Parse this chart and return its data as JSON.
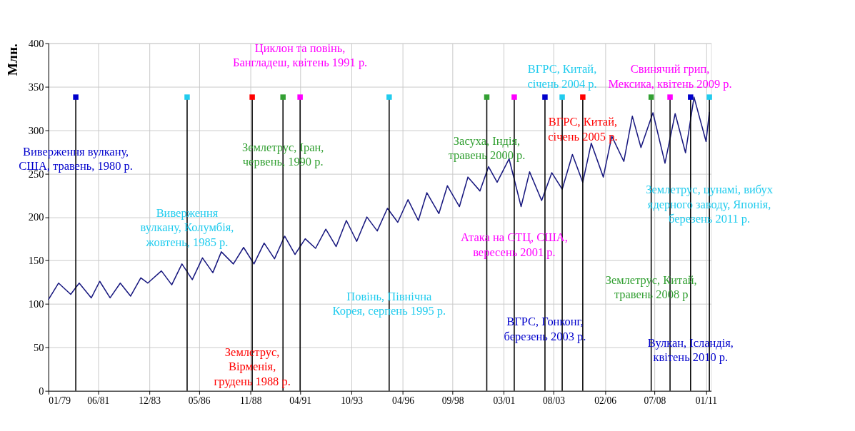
{
  "chart_data": {
    "type": "line",
    "ylabel": "Млн.",
    "x": [
      "1979-01",
      "1979-07",
      "1980-02",
      "1980-07",
      "1981-02",
      "1981-07",
      "1982-01",
      "1982-07",
      "1983-01",
      "1983-07",
      "1983-11",
      "1984-07",
      "1985-01",
      "1985-07",
      "1986-01",
      "1986-07",
      "1987-01",
      "1987-06",
      "1988-01",
      "1988-07",
      "1989-01",
      "1989-07",
      "1990-01",
      "1990-07",
      "1991-01",
      "1991-07",
      "1992-01",
      "1992-07",
      "1993-01",
      "1993-07",
      "1994-01",
      "1994-07",
      "1995-01",
      "1995-07",
      "1996-01",
      "1996-07",
      "1997-01",
      "1997-06",
      "1998-01",
      "1998-06",
      "1999-01",
      "1999-06",
      "2000-01",
      "2000-06",
      "2000-11",
      "2001-06",
      "2002-01",
      "2002-06",
      "2003-01",
      "2003-07",
      "2004-01",
      "2004-07",
      "2005-01",
      "2005-06",
      "2006-01",
      "2006-06",
      "2007-01",
      "2007-06",
      "2007-11",
      "2008-06",
      "2009-01",
      "2009-07",
      "2010-01",
      "2010-06",
      "2011-01",
      "2011-03"
    ],
    "series": [
      {
        "color": "#1a1a80",
        "values": [
          105,
          124,
          111,
          124,
          107,
          126,
          107,
          124,
          109,
          130,
          124,
          138,
          122,
          146,
          128,
          153,
          136,
          160,
          146,
          165,
          146,
          170,
          152,
          178,
          157,
          175,
          164,
          186,
          166,
          196,
          172,
          200,
          184,
          210,
          194,
          220,
          196,
          228,
          204,
          236,
          212,
          246,
          230,
          258,
          240,
          267,
          212,
          252,
          219,
          251,
          232,
          272,
          240,
          285,
          246,
          293,
          264,
          316,
          280,
          320,
          262,
          319,
          274,
          338,
          287,
          321
        ]
      },
      {
        "type": "scatter",
        "marker": "square",
        "x": [
          "1980-05",
          "1985-10",
          "1988-12",
          "1990-06",
          "1991-04",
          "1995-08",
          "2000-05",
          "2001-09",
          "2003-03",
          "2004-01",
          "2005-01",
          "2008-05",
          "2009-04",
          "2010-04",
          "2011-03"
        ],
        "values": [
          338,
          338,
          338,
          338,
          338,
          338,
          338,
          338,
          338,
          338,
          338,
          338,
          338,
          338,
          338
        ],
        "colors": [
          "#0000cc",
          "#22ccee",
          "#ff0000",
          "#33a033",
          "#ff00ff",
          "#22ccee",
          "#33a033",
          "#ff00ff",
          "#0000cc",
          "#22ccee",
          "#ff0000",
          "#33a033",
          "#ff00ff",
          "#0000cc",
          "#22ccee"
        ]
      }
    ],
    "xlim": [
      "1979-01",
      "2011-04"
    ],
    "xticks": [
      {
        "value": "1979-01",
        "label": "01/79"
      },
      {
        "value": "1981-06",
        "label": "06/81"
      },
      {
        "value": "1983-12",
        "label": "12/83"
      },
      {
        "value": "1986-05",
        "label": "05/86"
      },
      {
        "value": "1988-11",
        "label": "11/88"
      },
      {
        "value": "1991-04",
        "label": "04/91"
      },
      {
        "value": "1993-10",
        "label": "10/93"
      },
      {
        "value": "1996-04",
        "label": "04/96"
      },
      {
        "value": "1998-09",
        "label": "09/98"
      },
      {
        "value": "2001-03",
        "label": "03/01"
      },
      {
        "value": "2003-08",
        "label": "08/03"
      },
      {
        "value": "2006-02",
        "label": "02/06"
      },
      {
        "value": "2008-07",
        "label": "07/08"
      },
      {
        "value": "2011-01",
        "label": "01/11"
      }
    ],
    "ylim": [
      0,
      400
    ],
    "yticks": [
      0,
      50,
      100,
      150,
      200,
      250,
      300,
      350,
      400
    ],
    "grid": true,
    "marker": "none",
    "line_style": "solid",
    "ref_lines": [
      {
        "axis": "x",
        "value": "1980-05"
      },
      {
        "axis": "x",
        "value": "1985-10"
      },
      {
        "axis": "x",
        "value": "1988-12"
      },
      {
        "axis": "x",
        "value": "1990-06"
      },
      {
        "axis": "x",
        "value": "1991-04"
      },
      {
        "axis": "x",
        "value": "1995-08"
      },
      {
        "axis": "x",
        "value": "2000-05"
      },
      {
        "axis": "x",
        "value": "2001-09"
      },
      {
        "axis": "x",
        "value": "2003-03"
      },
      {
        "axis": "x",
        "value": "2004-01"
      },
      {
        "axis": "x",
        "value": "2005-01"
      },
      {
        "axis": "x",
        "value": "2008-05"
      },
      {
        "axis": "x",
        "value": "2009-04"
      },
      {
        "axis": "x",
        "value": "2010-04"
      },
      {
        "axis": "x",
        "value": "2011-03"
      }
    ],
    "annotations": [
      {
        "text": "Виверження вулкану,\nСША, травень, 1980 р.",
        "x": "1980-05",
        "y": 275
      },
      {
        "text": "Виверження\nвулкану, Колумбія,\nжовтень, 1985 р.",
        "x": "1985-10",
        "y": 204
      },
      {
        "text": "Землетрус,\nВірменія,\nгрудень 1988 р.",
        "x": "1988-12",
        "y": 44
      },
      {
        "text": "Землетрус, Іран,\nчервень, 1990 р.",
        "x": "1990-06",
        "y": 280
      },
      {
        "text": "Циклон та повінь,\nБангладеш, квітень 1991 р.",
        "x": "1991-04",
        "y": 362
      },
      {
        "text": "Повінь, Північна\nКорея, серпень 1995 р.",
        "x": "1995-08",
        "y": 108
      },
      {
        "text": "Засуха, Індія,\nтравень 2000 р.",
        "x": "2000-05",
        "y": 287
      },
      {
        "text": "Атака на СТЦ, США,\nвересень 2001 р.",
        "x": "2001-09",
        "y": 176
      },
      {
        "text": "ВГРС, Гонконг,\nберезень 2003 р.",
        "x": "2003-03",
        "y": 79
      },
      {
        "text": "ВГРС, Китай,\nсічень 2004 р.",
        "x": "2004-01",
        "y": 338
      },
      {
        "text": "ВГРС, Китай,\nсічень 2005 р.",
        "x": "2005-01",
        "y": 309
      },
      {
        "text": "Землетрус, Китай,\nтравень 2008 р",
        "x": "2008-05",
        "y": 127
      },
      {
        "text": "Свинячий грип,\nМексика, квітень 2009 р.",
        "x": "2009-04",
        "y": 338
      },
      {
        "text": "Вулкан, Ісландія,\nквітень 2010 р.",
        "x": "2010-04",
        "y": 55
      },
      {
        "text": "Землетрус, цунамі, вибух\nядерного заводу, Японія,\nберезень 2011 р.",
        "x": "2011-03",
        "y": 231
      }
    ]
  }
}
